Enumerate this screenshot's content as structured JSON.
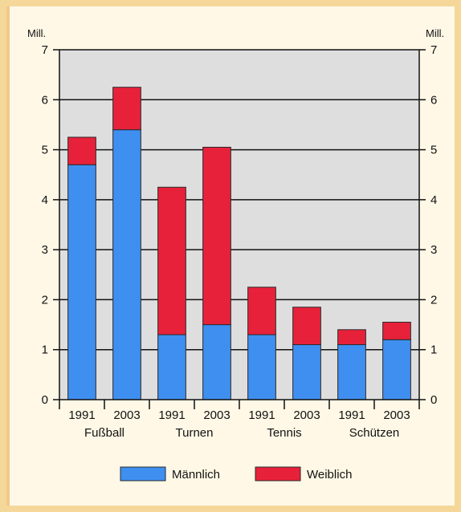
{
  "chart_data": {
    "type": "bar",
    "stacked": true,
    "unit_label_left": "Mill.",
    "unit_label_right": "Mill.",
    "ylim": [
      0,
      7
    ],
    "yticks": [
      "0",
      "1",
      "2",
      "3",
      "4",
      "5",
      "6",
      "7"
    ],
    "grid": true,
    "groups": [
      "Fußball",
      "Turnen",
      "Tennis",
      "Schützen"
    ],
    "years": [
      "1991",
      "2003",
      "1991",
      "2003",
      "1991",
      "2003",
      "1991",
      "2003"
    ],
    "series": [
      {
        "name": "Männlich",
        "color": "#3f8ff0",
        "values": [
          4.7,
          5.4,
          1.3,
          1.5,
          1.3,
          1.1,
          1.1,
          1.2
        ]
      },
      {
        "name": "Weiblich",
        "color": "#e8213a",
        "values": [
          0.55,
          0.85,
          2.95,
          3.55,
          0.95,
          0.75,
          0.3,
          0.35
        ]
      }
    ],
    "legend_position": "bottom"
  }
}
